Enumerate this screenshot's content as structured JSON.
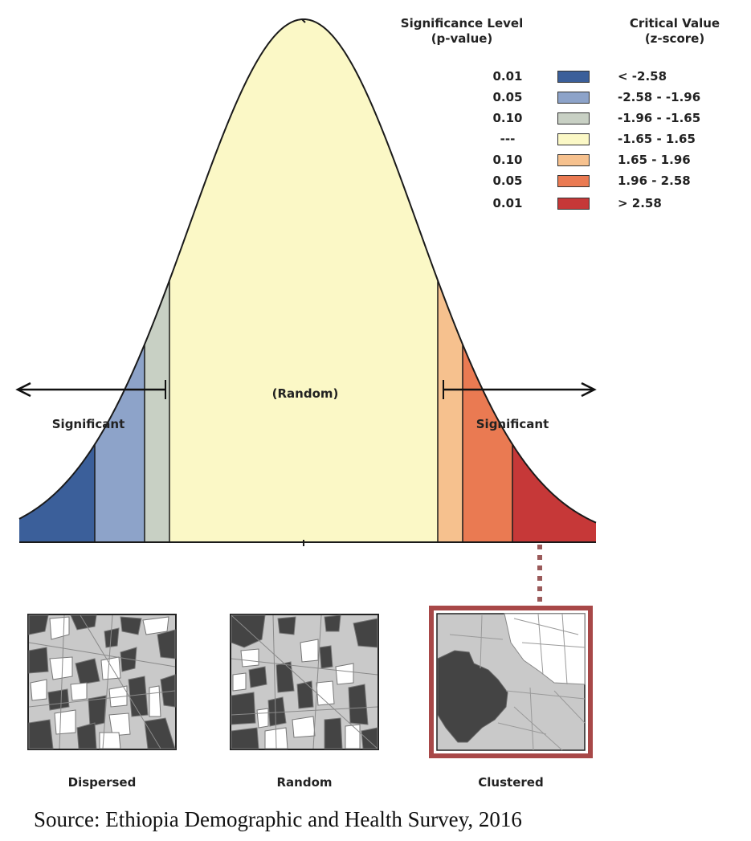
{
  "legend": {
    "significance_header_line1": "Significance Level",
    "significance_header_line2": "(p-value)",
    "critical_header_line1": "Critical Value",
    "critical_header_line2": "(z-score)",
    "rows": [
      {
        "p": "0.01",
        "z": "< -2.58",
        "color": "#3b5f9a"
      },
      {
        "p": "0.05",
        "z": "-2.58 - -1.96",
        "color": "#8da3c9"
      },
      {
        "p": "0.10",
        "z": "-1.96 - -1.65",
        "color": "#c8d0c4"
      },
      {
        "p": "---",
        "z": "-1.65 - 1.65",
        "color": "#fbf8c6"
      },
      {
        "p": "0.10",
        "z": "1.65 - 1.96",
        "color": "#f6c18e"
      },
      {
        "p": "0.05",
        "z": "1.96 - 2.58",
        "color": "#ea7a52"
      },
      {
        "p": "0.01",
        "z": "> 2.58",
        "color": "#c63838"
      }
    ]
  },
  "curve": {
    "center_label": "(Random)",
    "left_label": "Significant",
    "right_label": "Significant"
  },
  "patterns": [
    {
      "label": "Dispersed"
    },
    {
      "label": "Random"
    },
    {
      "label": "Clustered"
    }
  ],
  "source": "Source: Ethiopia Demographic and Health Survey, 2016"
}
